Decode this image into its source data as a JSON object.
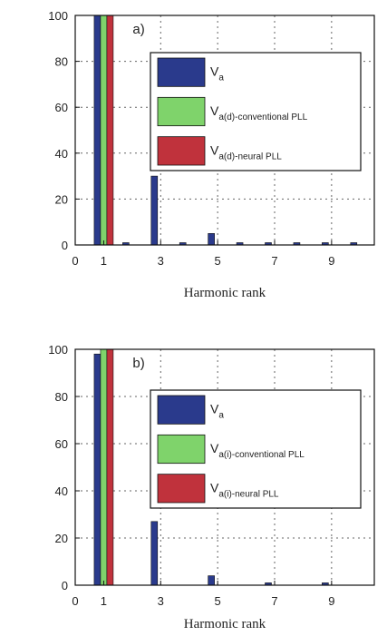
{
  "chart_data": [
    {
      "type": "bar",
      "panel_label": "a)",
      "xlabel": "Harmonic rank",
      "ylabel": "",
      "xlim": [
        0,
        10.5
      ],
      "ylim": [
        0,
        100
      ],
      "xticks": [
        0,
        1,
        3,
        5,
        7,
        9
      ],
      "yticks": [
        0,
        20,
        40,
        60,
        80,
        100
      ],
      "categories": [
        1,
        2,
        3,
        4,
        5,
        6,
        7,
        8,
        9,
        10
      ],
      "legend_position": "upper-right",
      "grid": true,
      "series": [
        {
          "name_main": "V",
          "name_sub": "a",
          "color": "#2a3a8c",
          "values": [
            100,
            1,
            30,
            1,
            5,
            1,
            1,
            1,
            1,
            1
          ]
        },
        {
          "name_main": "V",
          "name_sub": "a(d)-conventional PLL",
          "color": "#7fd36b",
          "values": [
            100,
            0,
            0,
            0,
            0,
            0,
            0,
            0,
            0,
            0
          ]
        },
        {
          "name_main": "V",
          "name_sub": "a(d)-neural PLL",
          "color": "#c0323c",
          "values": [
            100,
            0,
            0,
            0,
            0,
            0,
            0,
            0,
            0,
            0
          ]
        }
      ]
    },
    {
      "type": "bar",
      "panel_label": "b)",
      "xlabel": "Harmonic rank",
      "ylabel": "",
      "xlim": [
        0,
        10.5
      ],
      "ylim": [
        0,
        100
      ],
      "xticks": [
        0,
        1,
        3,
        5,
        7,
        9
      ],
      "yticks": [
        0,
        20,
        40,
        60,
        80,
        100
      ],
      "categories": [
        1,
        2,
        3,
        4,
        5,
        6,
        7,
        8,
        9,
        10
      ],
      "legend_position": "upper-right",
      "grid": true,
      "series": [
        {
          "name_main": "V",
          "name_sub": "a",
          "color": "#2a3a8c",
          "values": [
            98,
            0,
            27,
            0,
            4,
            0,
            1,
            0,
            1,
            0
          ]
        },
        {
          "name_main": "V",
          "name_sub": "a(i)-conventional PLL",
          "color": "#7fd36b",
          "values": [
            100,
            0,
            0,
            0,
            0,
            0,
            0,
            0,
            0,
            0
          ]
        },
        {
          "name_main": "V",
          "name_sub": "a(i)-neural PLL",
          "color": "#c0323c",
          "values": [
            100,
            0,
            0,
            0,
            0,
            0,
            0,
            0,
            0,
            0
          ]
        }
      ]
    }
  ]
}
